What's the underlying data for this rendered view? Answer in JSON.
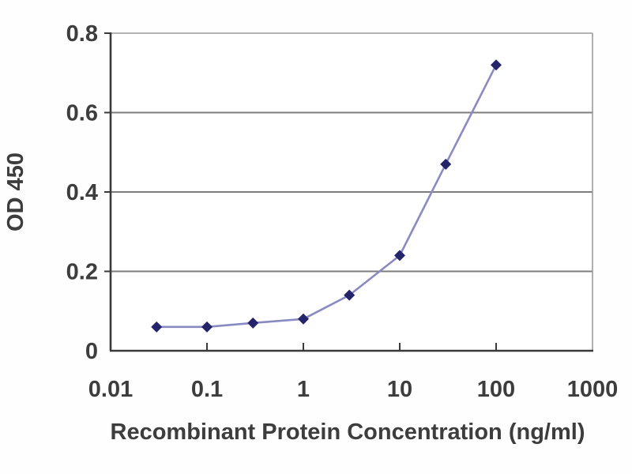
{
  "figure": {
    "xlabel": "Recombinant Protein Concentration (ng/ml)",
    "ylabel": "OD 450"
  },
  "chart_data": {
    "type": "line",
    "x_scale": "log",
    "x": [
      0.03,
      0.1,
      0.3,
      1,
      3,
      10,
      30,
      100
    ],
    "series": [
      {
        "name": "OD 450",
        "values": [
          0.06,
          0.06,
          0.07,
          0.08,
          0.14,
          0.24,
          0.47,
          0.72
        ]
      }
    ],
    "title": "",
    "xlabel": "Recombinant Protein Concentration (ng/ml)",
    "ylabel": "OD 450",
    "xlim": [
      0.01,
      1000
    ],
    "ylim": [
      0,
      0.8
    ],
    "x_ticks": [
      "0.01",
      "0.1",
      "1",
      "10",
      "100",
      "1000"
    ],
    "y_ticks": [
      "0",
      "0.2",
      "0.4",
      "0.6",
      "0.8"
    ],
    "grid_y": [
      0.2,
      0.4,
      0.6
    ],
    "grid": "horizontal-only",
    "legend": "none",
    "marker": "diamond",
    "colors": {
      "line": "#8a8ac2",
      "marker": "#24246b",
      "grid": "#7d7d7d",
      "axis": "#3a3a3a",
      "frame": "#9c9c9c",
      "text": "#3d3d3d",
      "background": "#fefefe",
      "plot_background": "#ffffff"
    }
  }
}
